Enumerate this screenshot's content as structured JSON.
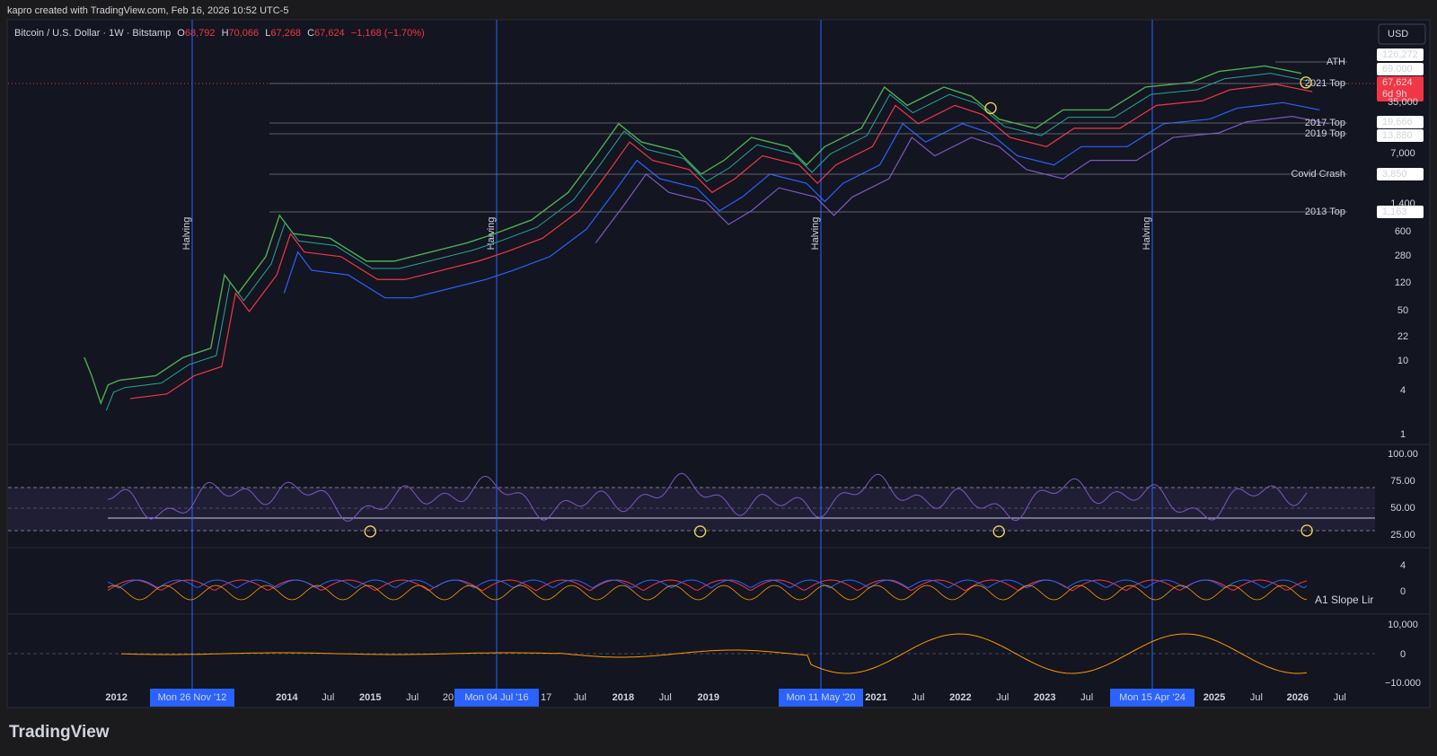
{
  "header": {
    "watermark": "kapro created with TradingView.com, Feb 16, 2026 10:52 UTC-5"
  },
  "legend": {
    "symbol": "Bitcoin / U.S. Dollar · 1W · Bitstamp",
    "open_label": "O",
    "open": "68,792",
    "high_label": "H",
    "high": "70,066",
    "low_label": "L",
    "low": "67,268",
    "close_label": "C",
    "close": "67,624",
    "change": "−1,168 (−1.70%)"
  },
  "currency": "USD",
  "price_axis": [
    "35,000",
    "7,000",
    "1,400",
    "600",
    "280",
    "120",
    "50",
    "22",
    "10",
    "4",
    "1"
  ],
  "levels": [
    {
      "name": "ATH",
      "value": "126,272"
    },
    {
      "name": "2021 Top",
      "value": "69,000"
    },
    {
      "name": "2017 Top",
      "value": "19,666"
    },
    {
      "name": "2019 Top",
      "value": "13,880"
    },
    {
      "name": "Covid Crash",
      "value": "3,850"
    },
    {
      "name": "2013 Top",
      "value": "1,163"
    }
  ],
  "current": {
    "price": "67,624",
    "countdown": "6d 9h"
  },
  "halving_label": "Halving",
  "rsi_axis": [
    "100.00",
    "75.00",
    "50.00",
    "25.00"
  ],
  "slope_axis": [
    "4",
    "0"
  ],
  "slope_name": "A1 Slope Lir",
  "macd_axis": [
    "10,000",
    "0",
    "−10.000"
  ],
  "time_axis": [
    "2012",
    "2014",
    "Jul",
    "2015",
    "Jul",
    "20",
    "17",
    "Jul",
    "2018",
    "Jul",
    "2019",
    "2021",
    "Jul",
    "2022",
    "Jul",
    "2023",
    "Jul",
    "2025",
    "Jul",
    "2026",
    "Jul"
  ],
  "halving_dates": [
    "Mon 26 Nov '12",
    "Mon 04 Jul '16",
    "Mon 11 May '20",
    "Mon 15 Apr '24"
  ],
  "footer": {
    "logo": "TradingView"
  }
}
